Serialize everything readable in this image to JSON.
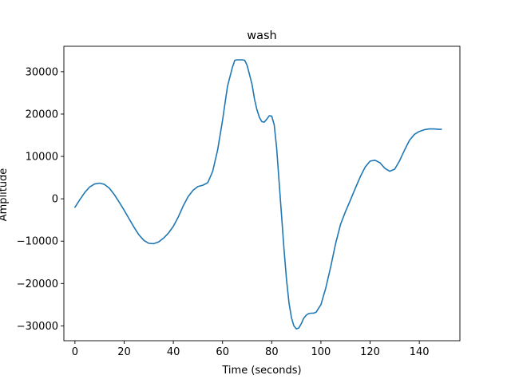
{
  "chart_data": {
    "type": "line",
    "title": "wash",
    "xlabel": "Time (seconds)",
    "ylabel": "Amplitude",
    "xlim": [
      -4.5,
      156.5
    ],
    "ylim": [
      -33500,
      36000
    ],
    "xticks": [
      0,
      20,
      40,
      60,
      80,
      100,
      120,
      140
    ],
    "yticks": [
      -30000,
      -20000,
      -10000,
      0,
      10000,
      20000,
      30000
    ],
    "grid": false,
    "line_color": "#1f77b4",
    "series": [
      {
        "x": [
          0,
          2,
          4,
          6,
          8,
          10,
          12,
          14,
          16,
          18,
          20,
          22,
          24,
          26,
          28,
          30,
          32,
          34,
          36,
          38,
          40,
          42,
          44,
          46,
          48,
          50,
          52,
          54,
          56,
          58,
          60,
          62,
          64,
          65,
          66,
          67,
          68,
          69,
          70,
          72,
          73,
          74,
          75,
          76,
          77,
          78,
          79,
          80,
          81,
          82,
          83,
          84,
          85,
          86,
          87,
          88,
          89,
          90,
          91,
          92,
          93,
          94,
          95,
          96,
          97,
          98,
          100,
          102,
          104,
          106,
          108,
          110,
          112,
          114,
          116,
          118,
          120,
          122,
          124,
          126,
          128,
          130,
          132,
          134,
          136,
          138,
          140,
          142,
          144,
          146,
          148,
          149
        ],
        "y": [
          -2000,
          -200,
          1500,
          2800,
          3500,
          3700,
          3400,
          2500,
          1000,
          -800,
          -2700,
          -4700,
          -6700,
          -8500,
          -9800,
          -10500,
          -10600,
          -10200,
          -9300,
          -8100,
          -6500,
          -4300,
          -1700,
          500,
          2000,
          2900,
          3200,
          3800,
          6500,
          11500,
          18500,
          26500,
          31000,
          32700,
          32800,
          32800,
          32800,
          32700,
          31500,
          27000,
          23500,
          21000,
          19200,
          18200,
          18100,
          18800,
          19600,
          19500,
          17500,
          12000,
          4000,
          -4000,
          -12000,
          -19000,
          -24500,
          -28000,
          -30000,
          -30700,
          -30500,
          -29500,
          -28200,
          -27500,
          -27100,
          -27000,
          -27000,
          -26800,
          -25000,
          -21000,
          -16000,
          -10500,
          -6000,
          -3000,
          -300,
          2500,
          5200,
          7500,
          8900,
          9100,
          8500,
          7200,
          6500,
          7000,
          9000,
          11500,
          13800,
          15200,
          15900,
          16300,
          16500,
          16500,
          16400,
          16400
        ]
      }
    ]
  }
}
